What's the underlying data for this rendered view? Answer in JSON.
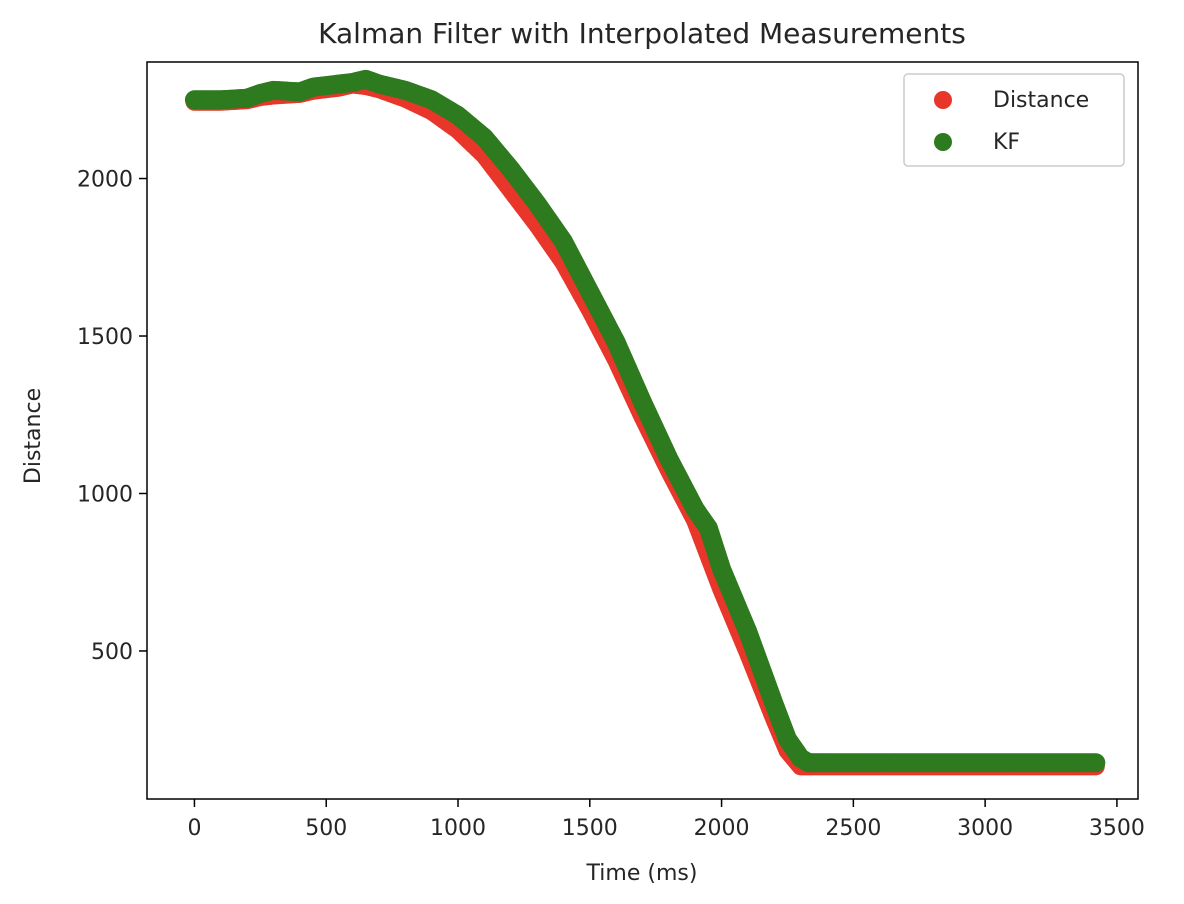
{
  "chart_data": {
    "type": "scatter",
    "title": "Kalman Filter with Interpolated Measurements",
    "xlabel": "Time (ms)",
    "ylabel": "Distance",
    "xlim": [
      -180,
      3580
    ],
    "ylim": [
      30,
      2370
    ],
    "xticks": [
      0,
      500,
      1000,
      1500,
      2000,
      2500,
      3000,
      3500
    ],
    "yticks": [
      500,
      1000,
      1500,
      2000
    ],
    "grid": false,
    "legend_position": "top-right",
    "series": [
      {
        "name": "Distance",
        "color": "#e8362a",
        "x": [
          0,
          100,
          200,
          250,
          300,
          400,
          450,
          500,
          550,
          600,
          650,
          700,
          800,
          900,
          1000,
          1100,
          1200,
          1300,
          1400,
          1500,
          1600,
          1700,
          1800,
          1900,
          2000,
          2100,
          2200,
          2250,
          2300,
          2340,
          2400,
          2600,
          2800,
          3000,
          3200,
          3420
        ],
        "y": [
          2250,
          2250,
          2255,
          2265,
          2270,
          2275,
          2285,
          2290,
          2295,
          2305,
          2300,
          2290,
          2260,
          2220,
          2160,
          2080,
          1970,
          1860,
          1740,
          1590,
          1430,
          1250,
          1080,
          920,
          700,
          500,
          290,
          190,
          140,
          140,
          140,
          140,
          140,
          140,
          140,
          140
        ]
      },
      {
        "name": "KF",
        "color": "#2e7a1e",
        "x": [
          0,
          100,
          200,
          250,
          300,
          400,
          450,
          500,
          550,
          600,
          650,
          700,
          800,
          900,
          1000,
          1100,
          1200,
          1300,
          1400,
          1500,
          1600,
          1700,
          1800,
          1900,
          1950,
          2000,
          2100,
          2200,
          2250,
          2300,
          2330,
          2350,
          2400,
          2600,
          2800,
          3000,
          3200,
          3420
        ],
        "y": [
          2250,
          2250,
          2255,
          2270,
          2280,
          2275,
          2290,
          2295,
          2300,
          2305,
          2315,
          2300,
          2280,
          2250,
          2200,
          2130,
          2030,
          1920,
          1800,
          1640,
          1480,
          1290,
          1110,
          950,
          890,
          760,
          560,
          330,
          220,
          160,
          145,
          145,
          145,
          145,
          145,
          145,
          145,
          145
        ]
      }
    ]
  }
}
